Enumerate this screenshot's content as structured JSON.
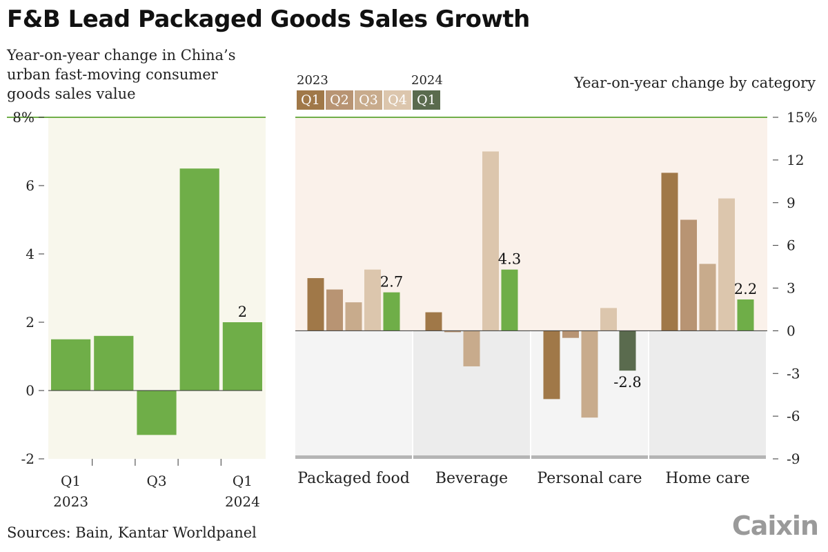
{
  "header": {
    "title": "F&B Lead Packaged Goods Sales Growth",
    "left_subtitle": "Year-on-year change in China’s urban fast-moving consumer goods sales value",
    "right_subtitle": "Year-on-year change by category"
  },
  "legend": {
    "year_start": "2023",
    "year_end": "2024",
    "items": [
      {
        "label": "Q1",
        "color": "#a07848"
      },
      {
        "label": "Q2",
        "color": "#b89473"
      },
      {
        "label": "Q3",
        "color": "#c8ab8c"
      },
      {
        "label": "Q4",
        "color": "#dcc6ad"
      },
      {
        "label": "Q1",
        "color": "#5a6b4e"
      }
    ]
  },
  "footer": {
    "source": "Sources: Bain, Kantar Worldpanel",
    "logo": "Caixin"
  },
  "colors": {
    "green": "#6fae48",
    "dark_green": "#5a6b4e",
    "left_bg": "#f8f7ec",
    "right_pos_bg": "#faf1ea",
    "right_neg_bg_a": "#f4f4f4",
    "right_neg_bg_b": "#ececec",
    "rule": "#6fae48"
  },
  "chart_data": [
    {
      "type": "bar",
      "categories": [
        "Q1 2023",
        "Q2 2023",
        "Q3 2023",
        "Q4 2023",
        "Q1 2024"
      ],
      "values": [
        1.5,
        1.6,
        -1.3,
        6.5,
        2.0
      ],
      "ylim": [
        -2,
        8
      ],
      "yticks": [
        8,
        6,
        4,
        2,
        0,
        -2
      ],
      "ytick_labels": [
        "8%",
        "6",
        "4",
        "2",
        "0",
        "-2"
      ],
      "xtick_labels": [
        {
          "top": "Q1",
          "bottom": "2023"
        },
        {
          "top": "",
          "bottom": ""
        },
        {
          "top": "Q3",
          "bottom": ""
        },
        {
          "top": "",
          "bottom": ""
        },
        {
          "top": "Q1",
          "bottom": "2024"
        }
      ],
      "data_labels": [
        {
          "index": 4,
          "text": "2"
        }
      ]
    },
    {
      "type": "bar",
      "categories": [
        "Packaged food",
        "Beverage",
        "Personal care",
        "Home care"
      ],
      "series": [
        {
          "name": "Q1 2023",
          "values": [
            3.7,
            1.3,
            -4.8,
            11.1
          ]
        },
        {
          "name": "Q2 2023",
          "values": [
            2.9,
            -0.1,
            -0.5,
            7.8
          ]
        },
        {
          "name": "Q3 2023",
          "values": [
            2.0,
            -2.5,
            -6.1,
            4.7
          ]
        },
        {
          "name": "Q4 2023",
          "values": [
            4.3,
            12.6,
            1.6,
            9.3
          ]
        },
        {
          "name": "Q1 2024",
          "values": [
            2.7,
            4.3,
            -2.8,
            2.2
          ]
        }
      ],
      "ylim": [
        -9,
        15
      ],
      "yticks": [
        15,
        12,
        9,
        6,
        3,
        0,
        -3,
        -6,
        -9
      ],
      "ytick_labels": [
        "15%",
        "12",
        "9",
        "6",
        "3",
        "0",
        "-3",
        "-6",
        "-9"
      ],
      "data_labels": [
        {
          "category": 0,
          "text": "2.7"
        },
        {
          "category": 1,
          "text": "4.3"
        },
        {
          "category": 2,
          "text": "-2.8"
        },
        {
          "category": 3,
          "text": "2.2"
        }
      ]
    }
  ]
}
